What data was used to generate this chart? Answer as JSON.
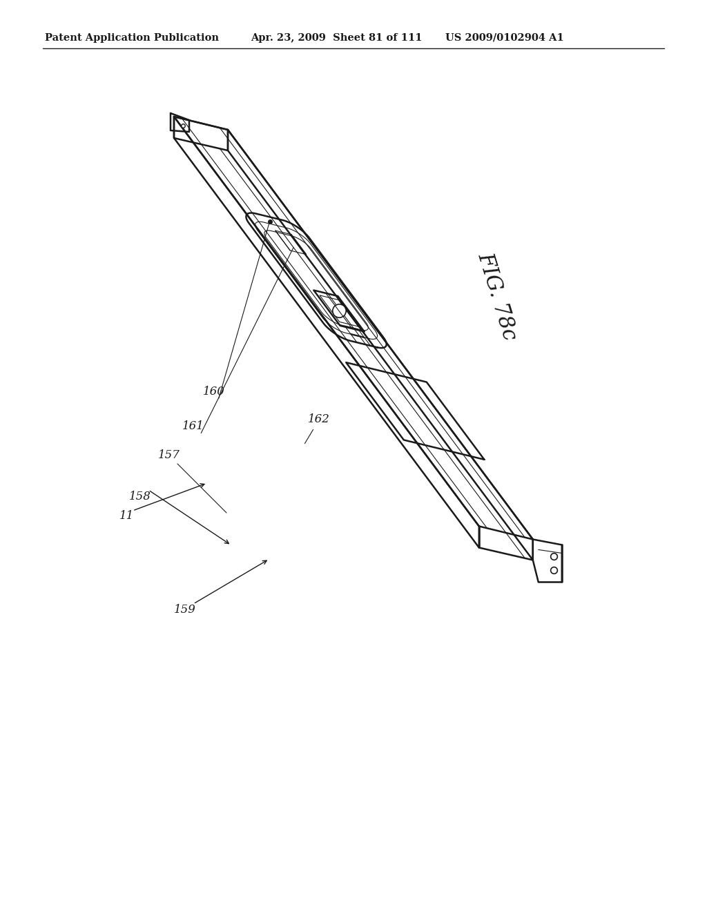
{
  "header_left": "Patent Application Publication",
  "header_mid": "Apr. 23, 2009  Sheet 81 of 111",
  "header_right": "US 2009/0102904 A1",
  "fig_label": "FIG. 78c",
  "bg_color": "#ffffff",
  "line_color": "#1a1a1a",
  "header_fontsize": 10.5,
  "label_fontsize": 12
}
